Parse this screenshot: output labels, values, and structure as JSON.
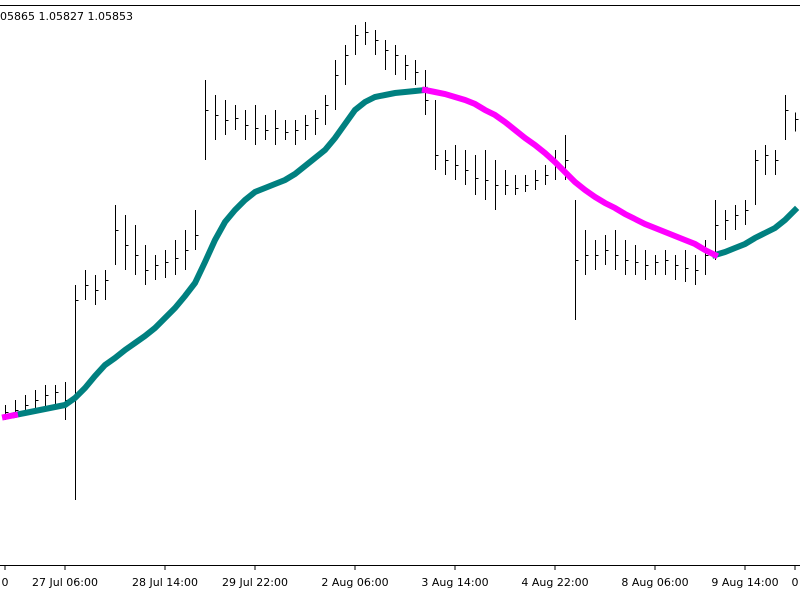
{
  "chart_data": {
    "type": "ohlc",
    "info": "05865 1.05827 1.05853",
    "categories": [
      "0",
      null,
      null,
      null,
      null,
      null,
      "27 Jul 06:00",
      null,
      null,
      null,
      null,
      null,
      null,
      null,
      null,
      null,
      "28 Jul 14:00",
      null,
      null,
      null,
      null,
      null,
      null,
      null,
      null,
      "29 Jul 22:00",
      null,
      null,
      null,
      null,
      null,
      null,
      null,
      null,
      null,
      "2 Aug 06:00",
      null,
      null,
      null,
      null,
      null,
      null,
      null,
      null,
      null,
      "3 Aug 14:00",
      null,
      null,
      null,
      null,
      null,
      null,
      null,
      null,
      null,
      "4 Aug 22:00",
      null,
      null,
      null,
      null,
      null,
      null,
      null,
      null,
      null,
      "8 Aug 06:00",
      null,
      null,
      null,
      null,
      null,
      null,
      null,
      null,
      "9 Aug 14:00",
      null,
      null,
      null,
      null,
      "0"
    ],
    "ylim": [
      1.0496,
      1.0609
    ],
    "bar_color": "#000000",
    "high": [
      1.0528,
      1.0529,
      1.053,
      1.0531,
      1.0532,
      1.0532,
      1.05326,
      1.0552,
      1.0555,
      1.0554,
      1.0555,
      1.0568,
      1.0566,
      1.0564,
      1.056,
      1.0558,
      1.0559,
      1.0561,
      1.0563,
      1.0567,
      1.0593,
      1.059,
      1.0589,
      1.0588,
      1.0587,
      1.0588,
      1.0586,
      1.0587,
      1.0585,
      1.0585,
      1.0586,
      1.0587,
      1.059,
      1.0597,
      1.06,
      1.0604,
      1.06046,
      1.0603,
      1.0601,
      1.06,
      1.0598,
      1.0597,
      1.0595,
      1.0589,
      1.0579,
      1.058,
      1.0579,
      1.0578,
      1.0579,
      1.0577,
      1.0575,
      1.0574,
      1.0574,
      1.0575,
      1.0576,
      1.0579,
      1.0582,
      1.0569,
      1.0563,
      1.0561,
      1.0562,
      1.0563,
      1.0561,
      1.056,
      1.0559,
      1.0558,
      1.0559,
      1.0558,
      1.0559,
      1.0558,
      1.0561,
      1.0569,
      1.0567,
      1.0568,
      1.0569,
      1.0579,
      1.058,
      1.0579,
      1.059,
      1.05865
    ],
    "low": [
      1.0525,
      1.05254,
      1.0526,
      1.05266,
      1.0527,
      1.0528,
      1.0525,
      1.0509,
      1.0549,
      1.0548,
      1.0549,
      1.0556,
      1.0555,
      1.0554,
      1.0552,
      1.0553,
      1.05534,
      1.0554,
      1.0555,
      1.0559,
      1.0577,
      1.0581,
      1.0582,
      1.0583,
      1.0581,
      1.058,
      1.0581,
      1.058,
      1.0581,
      1.058,
      1.0581,
      1.0582,
      1.0584,
      1.0587,
      1.0592,
      1.0598,
      1.06,
      1.0598,
      1.0595,
      1.0594,
      1.0593,
      1.0592,
      1.0586,
      1.0575,
      1.0574,
      1.0573,
      1.0572,
      1.057,
      1.0569,
      1.0567,
      1.057,
      1.057,
      1.05706,
      1.0571,
      1.0572,
      1.0573,
      1.0573,
      1.0545,
      1.0554,
      1.0555,
      1.0556,
      1.0555,
      1.0554,
      1.0554,
      1.0553,
      1.0554,
      1.0554,
      1.0553,
      1.05526,
      1.0552,
      1.0554,
      1.0557,
      1.0561,
      1.0563,
      1.0564,
      1.0568,
      1.0574,
      1.0574,
      1.0581,
      1.05827
    ],
    "close": [
      1.05266,
      1.0527,
      1.0528,
      1.0529,
      1.053,
      1.05306,
      1.0529,
      1.0549,
      1.0552,
      1.0551,
      1.0553,
      1.0563,
      1.056,
      1.0558,
      1.0555,
      1.0556,
      1.05566,
      1.05574,
      1.0559,
      1.0562,
      1.0587,
      1.0586,
      1.0585,
      1.05854,
      1.0584,
      1.05834,
      1.0583,
      1.05834,
      1.05826,
      1.0583,
      1.0584,
      1.05854,
      1.0588,
      1.0594,
      1.0598,
      1.0602,
      1.06026,
      1.0601,
      1.0599,
      1.0598,
      1.0596,
      1.05946,
      1.0589,
      1.0578,
      1.0577,
      1.0576,
      1.0575,
      1.05734,
      1.0573,
      1.0572,
      1.0572,
      1.05714,
      1.0572,
      1.0573,
      1.0574,
      1.0576,
      1.0577,
      1.0557,
      1.0558,
      1.0558,
      1.0559,
      1.0558,
      1.0557,
      1.05566,
      1.0556,
      1.05566,
      1.0557,
      1.0556,
      1.05554,
      1.0555,
      1.0558,
      1.0564,
      1.0565,
      1.0566,
      1.0567,
      1.0577,
      1.0578,
      1.0577,
      1.0587,
      1.05853
    ],
    "ma_up": {
      "color": "#008080",
      "values": [
        null,
        1.0526,
        1.05264,
        1.05268,
        1.05272,
        1.05276,
        1.0528,
        1.05294,
        1.05314,
        1.05338,
        1.0536,
        1.05374,
        1.0539,
        1.05404,
        1.05418,
        1.05434,
        1.05454,
        1.05474,
        1.05498,
        1.05524,
        1.05566,
        1.0561,
        1.05646,
        1.0567,
        1.0569,
        1.05706,
        1.05714,
        1.05722,
        1.0573,
        1.05742,
        1.05758,
        1.05774,
        1.0579,
        1.05814,
        1.05842,
        1.0587,
        1.05886,
        1.05896,
        1.059,
        1.05904,
        1.05906,
        1.05908,
        1.0591,
        null,
        null,
        null,
        null,
        null,
        null,
        null,
        null,
        null,
        null,
        null,
        null,
        null,
        null,
        null,
        null,
        null,
        null,
        null,
        null,
        null,
        null,
        null,
        null,
        null,
        null,
        null,
        null,
        1.0558,
        1.05586,
        1.05594,
        1.05602,
        1.05614,
        1.05624,
        1.05634,
        1.0565,
        1.0567
      ]
    },
    "ma_down": {
      "color": "#ff00ff",
      "values": [
        1.05256,
        1.0526,
        null,
        null,
        null,
        null,
        null,
        null,
        null,
        null,
        null,
        null,
        null,
        null,
        null,
        null,
        null,
        null,
        null,
        null,
        null,
        null,
        null,
        null,
        null,
        null,
        null,
        null,
        null,
        null,
        null,
        null,
        null,
        null,
        null,
        null,
        null,
        null,
        null,
        null,
        null,
        null,
        1.0591,
        1.05906,
        1.05902,
        1.05896,
        1.0589,
        1.05882,
        1.0587,
        1.0586,
        1.05846,
        1.0583,
        1.05814,
        1.058,
        1.05784,
        1.05766,
        1.05746,
        1.05726,
        1.0571,
        1.05696,
        1.05684,
        1.05674,
        1.05662,
        1.05652,
        1.05642,
        1.05634,
        1.05626,
        1.05618,
        1.0561,
        1.05602,
        1.0559,
        1.0558,
        null,
        null,
        null,
        null,
        null,
        null,
        null,
        null
      ]
    }
  }
}
